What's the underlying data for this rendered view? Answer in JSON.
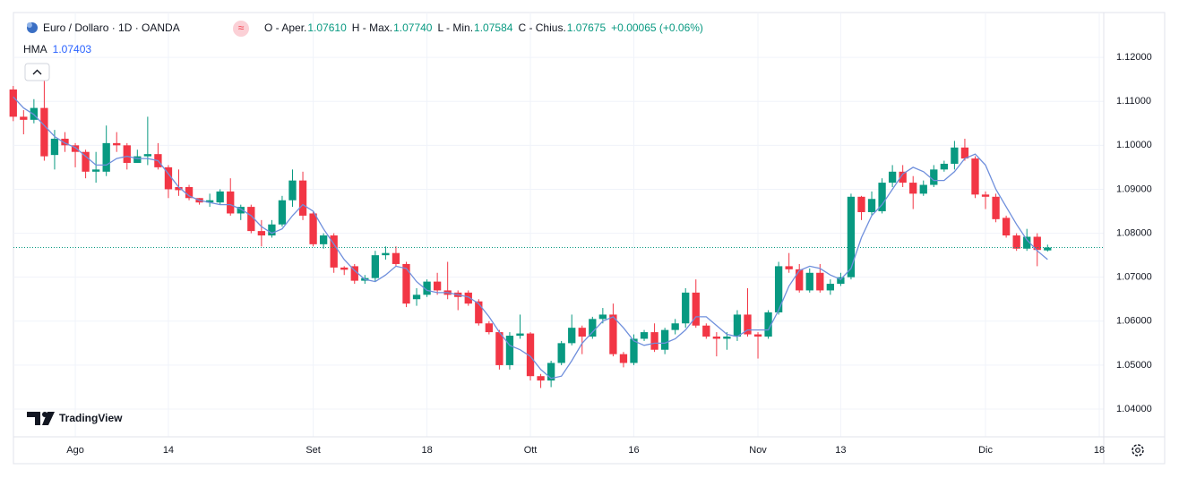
{
  "chart_data": {
    "type": "candlestick",
    "title": "Euro / Dollaro · 1D · OANDA",
    "header": {
      "open_label": "O - Aper.",
      "open": "1.07610",
      "high_label": "H - Max.",
      "high": "1.07740",
      "low_label": "L - Min.",
      "low": "1.07584",
      "close_label": "C - Chius.",
      "close": "1.07675",
      "change": "+0.00065 (+0.06%)"
    },
    "watermark": "TradingView",
    "up_color": "#089981",
    "down_color": "#f23645",
    "grid": true,
    "ylim": [
      1.0339,
      1.1302
    ],
    "yticks": [
      {
        "value": 1.04,
        "label": "1.04000"
      },
      {
        "value": 1.05,
        "label": "1.05000"
      },
      {
        "value": 1.06,
        "label": "1.06000"
      },
      {
        "value": 1.07,
        "label": "1.07000"
      },
      {
        "value": 1.08,
        "label": "1.08000"
      },
      {
        "value": 1.09,
        "label": "1.09000"
      },
      {
        "value": 1.1,
        "label": "1.10000"
      },
      {
        "value": 1.11,
        "label": "1.11000"
      },
      {
        "value": 1.12,
        "label": "1.12000"
      }
    ],
    "categories": [
      null,
      null,
      null,
      null,
      null,
      null,
      "Ago",
      null,
      null,
      null,
      null,
      null,
      null,
      null,
      null,
      "14",
      null,
      null,
      null,
      null,
      null,
      null,
      null,
      null,
      null,
      null,
      null,
      null,
      null,
      "Set",
      null,
      null,
      null,
      null,
      null,
      null,
      null,
      null,
      null,
      null,
      "18",
      null,
      null,
      null,
      null,
      null,
      null,
      null,
      null,
      null,
      "Ott",
      null,
      null,
      null,
      null,
      null,
      null,
      null,
      null,
      null,
      "16",
      null,
      null,
      null,
      null,
      null,
      null,
      null,
      null,
      null,
      null,
      null,
      "Nov",
      null,
      null,
      null,
      null,
      null,
      null,
      null,
      "13",
      null,
      null,
      null,
      null,
      null,
      null,
      null,
      null,
      null,
      null,
      null,
      null,
      null,
      "Dic",
      null,
      null,
      null,
      null,
      null,
      null,
      null,
      null,
      null,
      null,
      "18"
    ],
    "open": [
      1.1127,
      1.1065,
      1.1058,
      1.1085,
      1.0978,
      1.1015,
      1.1,
      1.0985,
      1.094,
      1.094,
      1.1005,
      1.1,
      1.096,
      1.0975,
      1.098,
      1.095,
      1.0905,
      1.0905,
      1.088,
      1.087,
      1.087,
      1.0895,
      1.0845,
      1.086,
      1.0805,
      1.0795,
      1.082,
      1.0875,
      1.092,
      1.0845,
      1.0775,
      1.0795,
      1.0722,
      1.0725,
      1.0692,
      1.0698,
      1.075,
      1.0755,
      1.073,
      1.065,
      1.066,
      1.069,
      1.067,
      1.0665,
      1.0665,
      1.0645,
      1.0595,
      1.0575,
      1.05,
      1.0567,
      1.0572,
      1.0475,
      1.0465,
      1.0505,
      1.055,
      1.0585,
      1.0565,
      1.0605,
      1.0615,
      1.0525,
      1.0505,
      1.056,
      1.0575,
      1.0535,
      1.058,
      1.0595,
      1.0665,
      1.059,
      1.0565,
      1.056,
      1.0565,
      1.0615,
      1.057,
      1.0565,
      1.062,
      1.0725,
      1.0718,
      1.067,
      1.071,
      1.067,
      1.0685,
      1.07,
      1.0883,
      1.0848,
      1.085,
      1.0915,
      1.094,
      1.0915,
      1.089,
      1.091,
      1.0945,
      1.0958,
      1.0995,
      1.097,
      1.0888,
      1.0883,
      1.0835,
      1.0795,
      1.0765,
      1.0792,
      1.0761,
      null,
      null,
      null,
      null,
      null
    ],
    "high": [
      1.1135,
      1.108,
      1.1105,
      1.1151,
      1.1035,
      1.103,
      1.1005,
      1.099,
      1.0985,
      1.1045,
      1.103,
      1.1005,
      1.099,
      1.1065,
      1.1005,
      1.0955,
      1.0945,
      1.091,
      1.088,
      1.089,
      1.09,
      1.0925,
      1.0865,
      1.0865,
      1.083,
      1.083,
      1.0885,
      1.0945,
      1.094,
      1.085,
      1.08,
      1.08,
      1.0725,
      1.073,
      1.0705,
      1.076,
      1.077,
      1.077,
      1.0735,
      1.0675,
      1.0695,
      1.071,
      1.0735,
      1.067,
      1.067,
      1.065,
      1.06,
      1.058,
      1.0575,
      1.0615,
      1.0575,
      1.048,
      1.051,
      1.0555,
      1.0615,
      1.059,
      1.061,
      1.063,
      1.064,
      1.053,
      1.057,
      1.058,
      1.0595,
      1.0585,
      1.0605,
      1.0675,
      1.0695,
      1.0595,
      1.0575,
      1.0575,
      1.0625,
      1.0675,
      1.0575,
      1.0625,
      1.0735,
      1.0755,
      1.073,
      1.072,
      1.073,
      1.0695,
      1.071,
      1.089,
      1.0885,
      1.0895,
      1.0925,
      1.0955,
      1.0955,
      1.093,
      1.092,
      1.0955,
      1.0965,
      1.101,
      1.1015,
      1.0975,
      1.0895,
      1.089,
      1.084,
      1.08,
      1.081,
      1.08,
      1.0774,
      null,
      null,
      null,
      null,
      null
    ],
    "low": [
      1.1055,
      1.1025,
      1.105,
      1.0965,
      1.0945,
      1.0985,
      1.095,
      1.0925,
      1.0915,
      1.093,
      1.0985,
      1.0945,
      1.096,
      1.0955,
      1.0945,
      1.088,
      1.0885,
      1.0875,
      1.0865,
      1.086,
      1.0865,
      1.084,
      1.083,
      1.08,
      1.077,
      1.079,
      1.0815,
      1.086,
      1.083,
      1.077,
      1.0765,
      1.071,
      1.0705,
      1.0685,
      1.0685,
      1.069,
      1.074,
      1.0725,
      1.0632,
      1.0635,
      1.0655,
      1.066,
      1.065,
      1.0625,
      1.0635,
      1.059,
      1.057,
      1.049,
      1.049,
      1.056,
      1.0465,
      1.0448,
      1.045,
      1.05,
      1.0545,
      1.0525,
      1.056,
      1.0595,
      1.052,
      1.0495,
      1.05,
      1.0555,
      1.053,
      1.0525,
      1.057,
      1.0585,
      1.0585,
      1.056,
      1.052,
      1.0535,
      1.0555,
      1.0565,
      1.0515,
      1.056,
      1.0615,
      1.071,
      1.0665,
      1.0665,
      1.0665,
      1.066,
      1.068,
      1.0695,
      1.083,
      1.084,
      1.0845,
      1.0905,
      1.0905,
      1.0855,
      1.0885,
      1.0905,
      1.094,
      1.0945,
      1.0965,
      1.088,
      1.0855,
      1.0825,
      1.079,
      1.076,
      1.076,
      1.0725,
      1.07584,
      null,
      null,
      null,
      null,
      null
    ],
    "close": [
      1.1065,
      1.1058,
      1.1085,
      1.0975,
      1.1015,
      1.1,
      1.0985,
      1.094,
      1.0945,
      1.1005,
      1.1,
      1.096,
      1.0975,
      1.098,
      1.095,
      1.09,
      1.0898,
      1.088,
      1.087,
      1.0875,
      1.0895,
      1.0845,
      1.086,
      1.0805,
      1.0795,
      1.082,
      1.0875,
      1.092,
      1.084,
      1.0775,
      1.0795,
      1.0722,
      1.0717,
      1.0692,
      1.0698,
      1.075,
      1.0755,
      1.073,
      1.064,
      1.066,
      1.069,
      1.067,
      1.066,
      1.0655,
      1.064,
      1.0595,
      1.0575,
      1.05,
      1.0567,
      1.0572,
      1.0475,
      1.0465,
      1.0505,
      1.055,
      1.0585,
      1.0565,
      1.0605,
      1.0615,
      1.0525,
      1.0505,
      1.056,
      1.0575,
      1.0535,
      1.058,
      1.0595,
      1.0665,
      1.059,
      1.0565,
      1.056,
      1.0565,
      1.0615,
      1.057,
      1.0565,
      1.062,
      1.0725,
      1.0718,
      1.067,
      1.071,
      1.067,
      1.0685,
      1.07,
      1.0883,
      1.0848,
      1.0878,
      1.0915,
      1.094,
      1.0915,
      1.089,
      1.091,
      1.0945,
      1.0958,
      1.0995,
      1.097,
      1.0888,
      1.0883,
      1.0832,
      1.0795,
      1.0765,
      1.0792,
      1.0762,
      1.07675,
      null,
      null,
      null,
      null,
      null
    ],
    "indicator": {
      "name": "HMA",
      "value_label": "1.07403",
      "color": "#6f8fdc",
      "values": [
        1.111,
        1.1085,
        1.107,
        1.1045,
        1.102,
        1.1005,
        1.0995,
        1.0975,
        1.0955,
        1.0955,
        1.097,
        1.0975,
        1.097,
        1.097,
        1.0965,
        1.0935,
        1.0905,
        1.0885,
        1.0875,
        1.087,
        1.0865,
        1.0865,
        1.0855,
        1.084,
        1.0815,
        1.08,
        1.081,
        1.084,
        1.0865,
        1.085,
        1.081,
        1.0775,
        1.074,
        1.0715,
        1.0695,
        1.069,
        1.0705,
        1.0725,
        1.072,
        1.069,
        1.067,
        1.0665,
        1.0665,
        1.066,
        1.0655,
        1.064,
        1.061,
        1.0575,
        1.0545,
        1.0535,
        1.052,
        1.049,
        1.047,
        1.0475,
        1.051,
        1.055,
        1.0575,
        1.06,
        1.061,
        1.0585,
        1.0555,
        1.0545,
        1.055,
        1.055,
        1.056,
        1.058,
        1.061,
        1.061,
        1.059,
        1.057,
        1.0565,
        1.058,
        1.058,
        1.058,
        1.0625,
        1.068,
        1.0715,
        1.0725,
        1.072,
        1.0705,
        1.0695,
        1.072,
        1.079,
        1.084,
        1.0865,
        1.09,
        1.0935,
        1.095,
        1.094,
        1.092,
        1.092,
        1.094,
        1.097,
        1.098,
        1.0955,
        1.09,
        1.086,
        1.082,
        1.0785,
        1.076,
        1.07403,
        null,
        null,
        null,
        null,
        null
      ]
    }
  }
}
